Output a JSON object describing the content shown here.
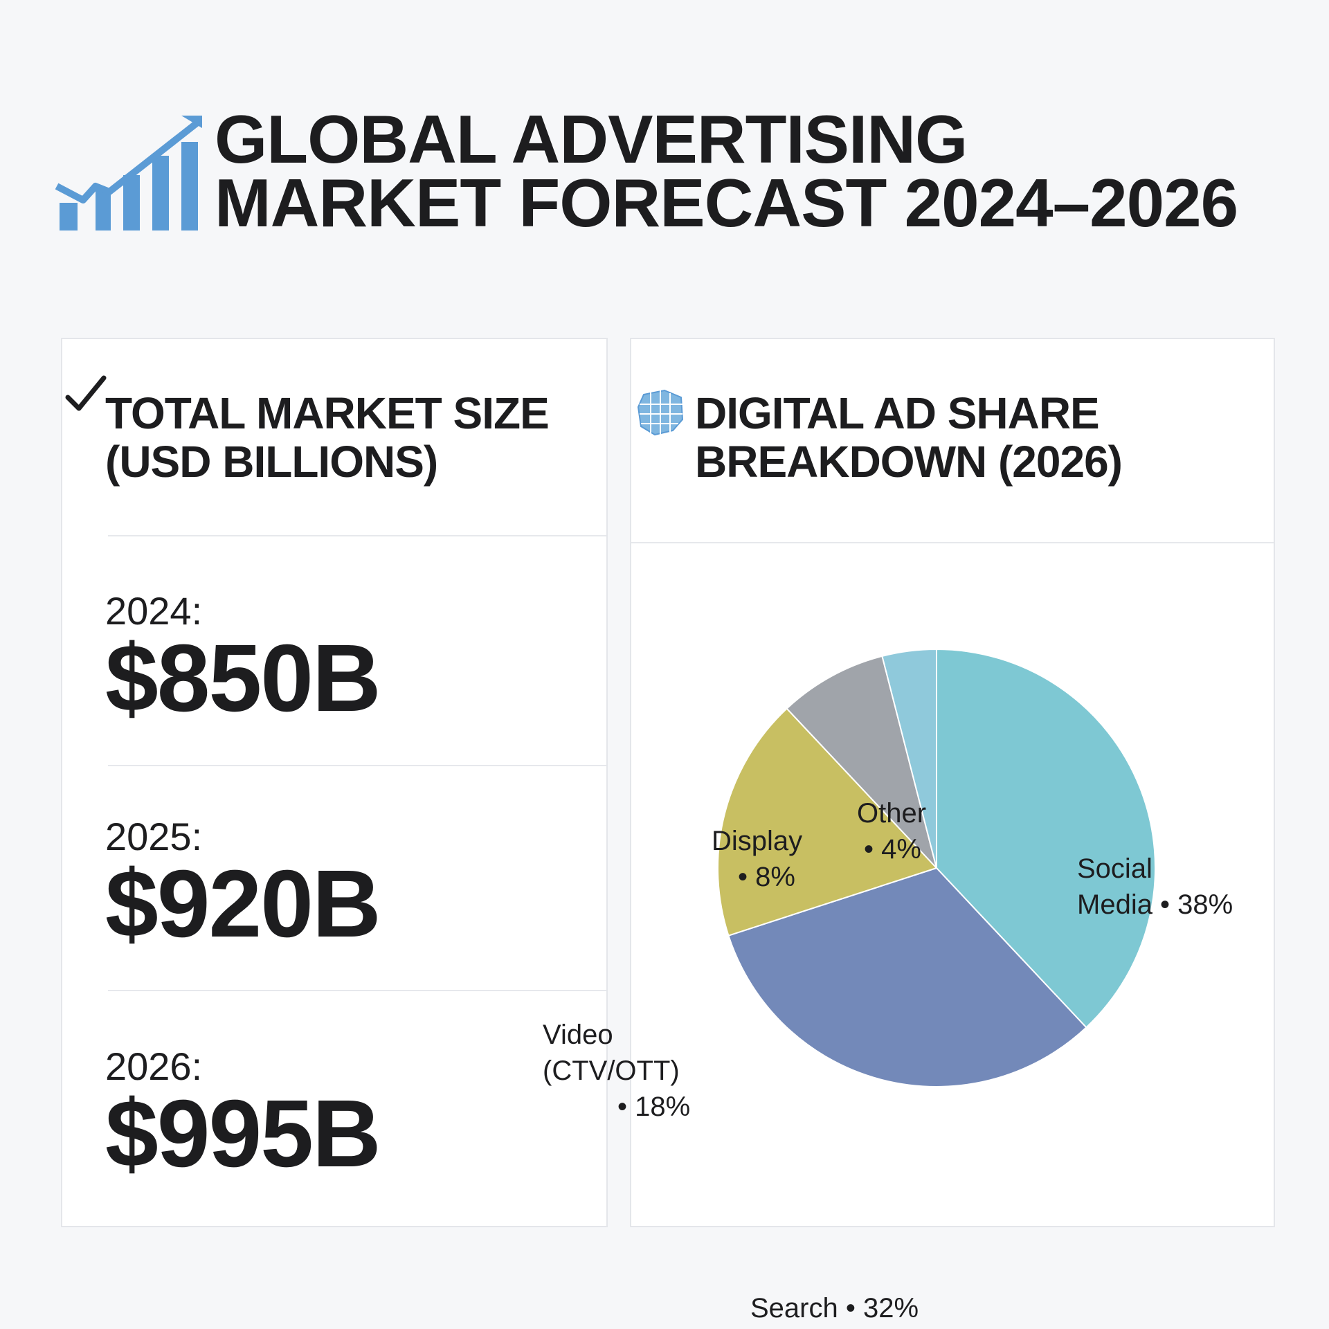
{
  "header": {
    "title_line1": "GLOBAL ADVERTISING",
    "title_line2": "MARKET FORECAST 2024–2026",
    "logo_icon": "rising-bar-chart-icon",
    "accent_color": "#5b9bd5"
  },
  "market_panel": {
    "icon": "check-icon",
    "title_line1": "TOTAL MARKET SIZE",
    "title_line2": "(USD BILLIONS)",
    "stats": [
      {
        "year": "2024:",
        "value": "$850B"
      },
      {
        "year": "2025:",
        "value": "$920B"
      },
      {
        "year": "2026:",
        "value": "$995B"
      }
    ]
  },
  "share_panel": {
    "icon": "grid-map-icon",
    "title_line1": "DIGITAL AD SHARE",
    "title_line2": "BREAKDOWN (2026)"
  },
  "chart_data": {
    "type": "pie",
    "title": "DIGITAL AD SHARE BREAKDOWN (2026)",
    "slices": [
      {
        "label_lines": [
          "Social",
          "Media • 38%"
        ],
        "name": "Social Media",
        "value": 38,
        "color": "#7ec8d3"
      },
      {
        "label_lines": [
          "Search • 32%"
        ],
        "name": "Search",
        "value": 32,
        "color": "#7389b9"
      },
      {
        "label_lines": [
          "Video",
          "(CTV/OTT)",
          "• 18%"
        ],
        "name": "Video (CTV/OTT)",
        "value": 18,
        "color": "#c8bf62"
      },
      {
        "label_lines": [
          "Display",
          "• 8%"
        ],
        "name": "Display",
        "value": 8,
        "color": "#a0a4aa"
      },
      {
        "label_lines": [
          "Other",
          "• 4%"
        ],
        "name": "Other",
        "value": 4,
        "color": "#8fc9db"
      }
    ]
  }
}
